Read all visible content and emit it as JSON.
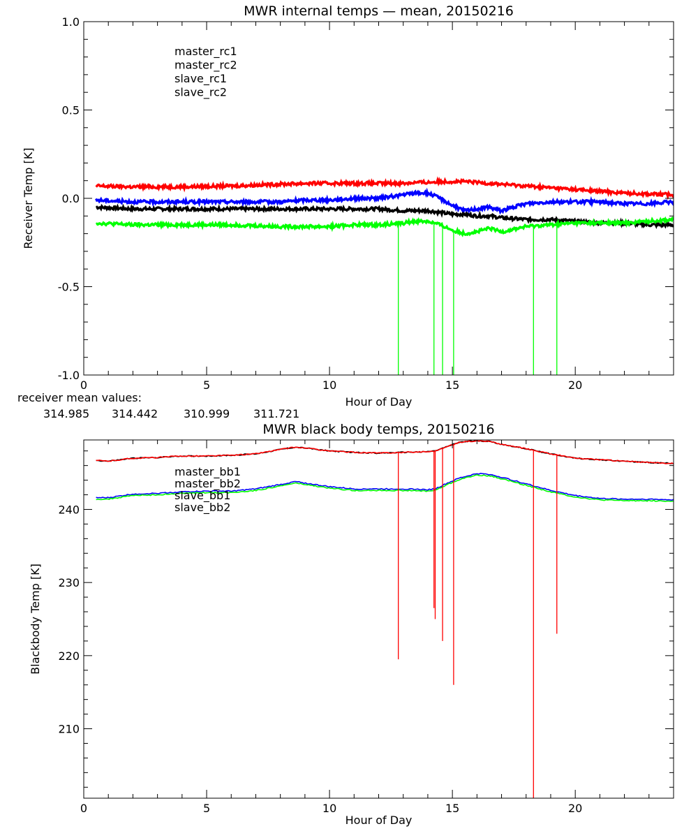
{
  "chart_data": [
    {
      "type": "line",
      "title": "MWR internal temps — mean, 20150216",
      "xlabel": "Hour of Day",
      "ylabel": "Receiver Temp [K]",
      "xlim": [
        0,
        24
      ],
      "ylim": [
        -1.0,
        1.0
      ],
      "x_ticks": [
        "0",
        "5",
        "10",
        "15",
        "20"
      ],
      "y_ticks": [
        "-1.0",
        "-0.5",
        "0.0",
        "0.5",
        "1.0"
      ],
      "grid": false,
      "legend_position": "top-left",
      "legend": [
        "master_rc1",
        "master_rc2",
        "slave_rc1",
        "slave_rc2"
      ],
      "colors": [
        "#000000",
        "#ff0000",
        "#0000ff",
        "#00ff00"
      ],
      "x": [
        0.5,
        2,
        4,
        6,
        8,
        9,
        10,
        11,
        12,
        13,
        13.5,
        14,
        14.5,
        15,
        15.5,
        16,
        16.5,
        17,
        18,
        19,
        20,
        21,
        22,
        23,
        24
      ],
      "series": [
        {
          "name": "master_rc1",
          "values": [
            -0.05,
            -0.06,
            -0.06,
            -0.06,
            -0.06,
            -0.06,
            -0.06,
            -0.06,
            -0.06,
            -0.07,
            -0.07,
            -0.07,
            -0.08,
            -0.09,
            -0.09,
            -0.1,
            -0.1,
            -0.11,
            -0.12,
            -0.12,
            -0.13,
            -0.14,
            -0.14,
            -0.15,
            -0.15
          ]
        },
        {
          "name": "master_rc2",
          "values": [
            0.07,
            0.065,
            0.065,
            0.07,
            0.08,
            0.085,
            0.085,
            0.085,
            0.085,
            0.085,
            0.09,
            0.09,
            0.095,
            0.095,
            0.095,
            0.09,
            0.085,
            0.08,
            0.07,
            0.06,
            0.05,
            0.04,
            0.03,
            0.025,
            0.02
          ]
        },
        {
          "name": "slave_rc1",
          "values": [
            -0.01,
            -0.02,
            -0.02,
            -0.02,
            -0.02,
            -0.01,
            -0.01,
            0.0,
            0.0,
            0.02,
            0.03,
            0.03,
            0.0,
            -0.04,
            -0.07,
            -0.06,
            -0.05,
            -0.07,
            -0.03,
            -0.02,
            -0.02,
            -0.02,
            -0.03,
            -0.03,
            -0.02
          ]
        },
        {
          "name": "slave_rc2",
          "values": [
            -0.14,
            -0.15,
            -0.15,
            -0.15,
            -0.16,
            -0.16,
            -0.16,
            -0.15,
            -0.15,
            -0.14,
            -0.13,
            -0.13,
            -0.15,
            -0.18,
            -0.2,
            -0.19,
            -0.17,
            -0.19,
            -0.16,
            -0.15,
            -0.14,
            -0.14,
            -0.14,
            -0.13,
            -0.12
          ]
        }
      ],
      "spikes": {
        "series": "slave_rc2",
        "x": [
          12.8,
          14.25,
          14.6,
          15.05,
          18.3,
          19.25
        ],
        "value": -1.0
      },
      "footnote_label": "receiver mean values:",
      "mean_values": [
        {
          "text": "314.985",
          "color": "#000000"
        },
        {
          "text": "314.442",
          "color": "#ff0000"
        },
        {
          "text": "310.999",
          "color": "#0000ff"
        },
        {
          "text": "311.721",
          "color": "#00ff00"
        }
      ]
    },
    {
      "type": "line",
      "title": "MWR black body temps, 20150216",
      "xlabel": "Hour of Day",
      "ylabel": "Blackbody Temp [K]",
      "xlim": [
        0,
        24
      ],
      "ylim": [
        200.5,
        249.5
      ],
      "x_ticks": [
        "0",
        "5",
        "10",
        "15",
        "20"
      ],
      "y_ticks": [
        "210",
        "220",
        "230",
        "240"
      ],
      "grid": false,
      "legend_position": "top-left",
      "legend": [
        "master_bb1",
        "master_bb2",
        "slave_bb1",
        "slave_bb2"
      ],
      "colors": [
        "#000000",
        "#ff0000",
        "#0000ff",
        "#00ff00"
      ],
      "x": [
        0.5,
        1,
        2,
        3,
        4,
        5,
        6,
        7,
        8,
        8.6,
        9,
        10,
        11,
        12,
        13,
        14,
        14.3,
        14.8,
        15.3,
        16,
        16.5,
        17,
        18,
        19,
        20,
        21,
        22,
        23,
        24
      ],
      "series": [
        {
          "name": "master_bb1",
          "values": [
            246.7,
            246.6,
            247.0,
            247.1,
            247.3,
            247.3,
            247.4,
            247.6,
            248.2,
            248.5,
            248.4,
            248.0,
            247.8,
            247.7,
            247.8,
            247.9,
            248.0,
            248.6,
            249.2,
            249.4,
            249.3,
            248.9,
            248.3,
            247.6,
            247.0,
            246.8,
            246.6,
            246.4,
            246.3
          ]
        },
        {
          "name": "master_bb2",
          "values": [
            246.7,
            246.6,
            247.0,
            247.1,
            247.3,
            247.3,
            247.4,
            247.6,
            248.2,
            248.5,
            248.4,
            248.0,
            247.8,
            247.7,
            247.8,
            247.9,
            248.0,
            248.6,
            249.2,
            249.4,
            249.3,
            248.9,
            248.3,
            247.6,
            247.0,
            246.8,
            246.6,
            246.4,
            246.3
          ]
        },
        {
          "name": "slave_bb1",
          "values": [
            241.6,
            241.6,
            242.1,
            242.2,
            242.4,
            242.5,
            242.5,
            242.8,
            243.4,
            243.8,
            243.6,
            243.1,
            242.8,
            242.8,
            242.8,
            242.7,
            242.8,
            243.6,
            244.3,
            244.9,
            244.8,
            244.4,
            243.5,
            242.6,
            241.9,
            241.5,
            241.4,
            241.4,
            241.3
          ]
        },
        {
          "name": "slave_bb2",
          "values": [
            241.4,
            241.4,
            241.9,
            242.0,
            242.2,
            242.3,
            242.3,
            242.6,
            243.2,
            243.6,
            243.4,
            242.9,
            242.6,
            242.6,
            242.6,
            242.5,
            242.6,
            243.4,
            244.1,
            244.7,
            244.6,
            244.2,
            243.3,
            242.4,
            241.7,
            241.3,
            241.2,
            241.2,
            241.1
          ]
        }
      ],
      "spikes": {
        "series": "master_bb2",
        "x": [
          12.8,
          14.25,
          14.3,
          14.6,
          15.05,
          18.3,
          19.25
        ],
        "values": [
          219.5,
          226.5,
          225.0,
          222.0,
          216.0,
          200.5,
          223.0
        ]
      }
    }
  ]
}
